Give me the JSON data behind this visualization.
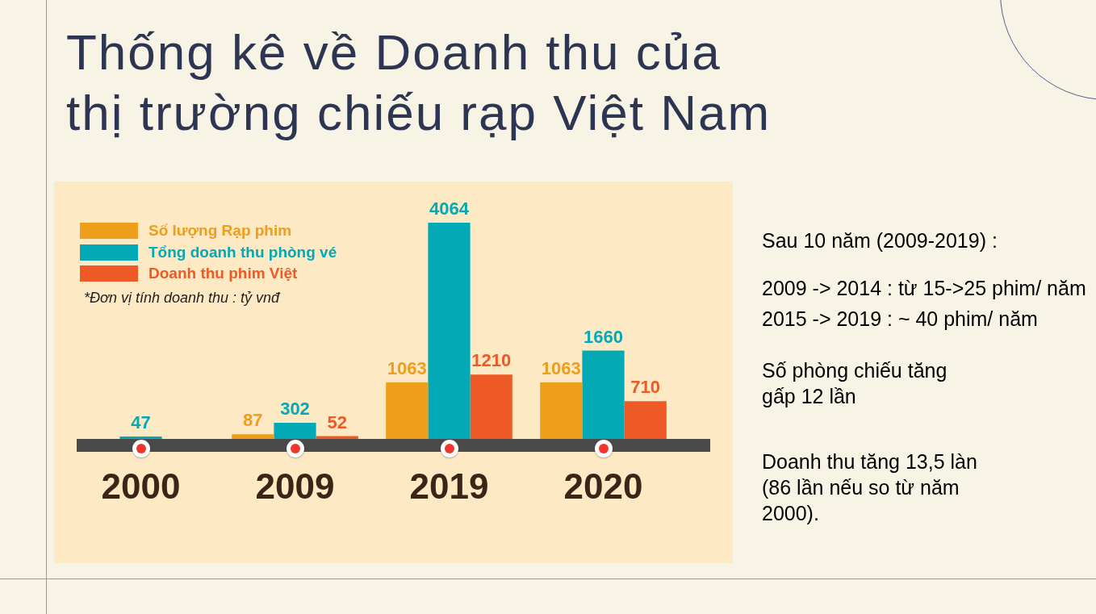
{
  "chart_data": {
    "type": "bar",
    "title": "Thống kê về Doanh thu của thị trường chiếu rạp Việt Nam",
    "categories": [
      "2000",
      "2009",
      "2019",
      "2020"
    ],
    "series": [
      {
        "name": "Số lượng Rạp phim",
        "color": "#ee9e1a",
        "values": [
          null,
          87,
          1063,
          1063
        ]
      },
      {
        "name": "Tổng doanh thu phòng vé",
        "color": "#03a9b4",
        "values": [
          47,
          302,
          4064,
          1660
        ]
      },
      {
        "name": "Doanh thu phim Việt",
        "color": "#ee5a26",
        "values": [
          null,
          52,
          1210,
          710
        ]
      }
    ],
    "data_labels": true,
    "legend": "top left",
    "tick_labels": "x",
    "annotations": [
      "*Đơn vị tính doanh thu : tỷ vnđ",
      "Sau 10 năm (2009-2019) :",
      "2009 -> 2014 : từ 15->25 phim/ năm",
      "2015 -> 2019 : ~ 40 phim/ năm",
      "Số phòng chiếu tăng gấp 12 lần",
      "Doanh thu tăng 13,5 làn (86 lần nếu so từ năm 2000)."
    ]
  }
}
